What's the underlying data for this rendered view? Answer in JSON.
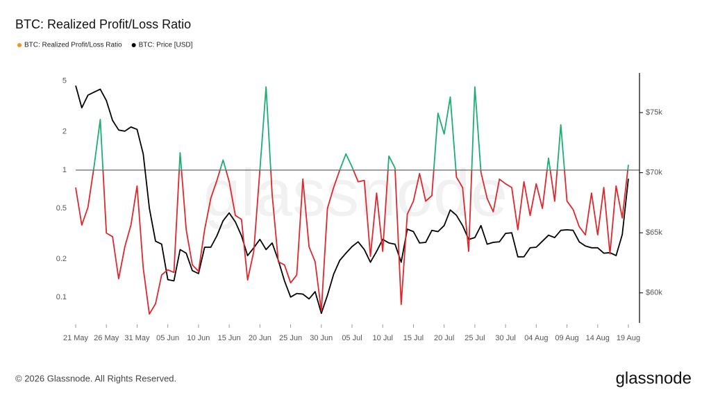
{
  "chart_data": {
    "type": "line",
    "title": "BTC: Realized Profit/Loss Ratio",
    "watermark": "glassnode",
    "footer": "© 2026 Glassnode. All Rights Reserved.",
    "logo": "glassnode",
    "categories": [
      "21 May",
      null,
      null,
      null,
      null,
      "26 May",
      null,
      null,
      null,
      null,
      "31 May",
      null,
      null,
      null,
      null,
      "05 Jun",
      null,
      null,
      null,
      null,
      "10 Jun",
      null,
      null,
      null,
      null,
      "15 Jun",
      null,
      null,
      null,
      null,
      "20 Jun",
      null,
      null,
      null,
      null,
      "25 Jun",
      null,
      null,
      null,
      null,
      "30 Jun",
      null,
      null,
      null,
      null,
      "05 Jul",
      null,
      null,
      null,
      null,
      "10 Jul",
      null,
      null,
      null,
      null,
      "15 Jul",
      null,
      null,
      null,
      null,
      "20 Jul",
      null,
      null,
      null,
      null,
      "25 Jul",
      null,
      null,
      null,
      null,
      "30 Jul",
      null,
      null,
      null,
      null,
      "04 Aug",
      null,
      null,
      null,
      null,
      "09 Aug",
      null,
      null,
      null,
      null,
      "14 Aug",
      null,
      null,
      null,
      null,
      "19 Aug"
    ],
    "ylog": true,
    "ylim": [
      0.063,
      5.8
    ],
    "yticks": [
      0.1,
      0.2,
      0.5,
      1,
      2,
      5
    ],
    "y2lim": [
      57500,
      78300
    ],
    "y2ticks": [
      {
        "value": 60000,
        "label": "$60k"
      },
      {
        "value": 65000,
        "label": "$65k"
      },
      {
        "value": 70000,
        "label": "$70k"
      },
      {
        "value": 75000,
        "label": "$75k"
      }
    ],
    "series": [
      {
        "name": "BTC: Realized Profit/Loss Ratio",
        "color": "#f7931a",
        "color_above": "#1aae74",
        "color_below": "#e0262b",
        "values": [
          0.73,
          0.37,
          0.51,
          1.07,
          2.5,
          0.32,
          0.3,
          0.14,
          0.25,
          0.37,
          0.75,
          0.17,
          0.074,
          0.089,
          0.15,
          0.165,
          0.157,
          1.37,
          0.34,
          0.18,
          0.16,
          0.34,
          0.6,
          0.83,
          1.2,
          0.81,
          0.44,
          0.41,
          0.137,
          0.23,
          1.0,
          4.5,
          0.64,
          0.19,
          0.18,
          0.13,
          0.15,
          0.85,
          0.25,
          0.19,
          0.078,
          0.5,
          0.73,
          1.0,
          1.34,
          1.06,
          0.81,
          0.83,
          0.21,
          0.66,
          0.23,
          1.29,
          1.04,
          0.088,
          0.45,
          0.57,
          0.94,
          0.57,
          0.63,
          2.8,
          1.92,
          3.75,
          0.88,
          0.73,
          0.23,
          4.5,
          0.96,
          0.6,
          0.47,
          0.85,
          0.78,
          0.73,
          0.34,
          0.81,
          0.44,
          0.78,
          0.5,
          1.24,
          0.57,
          2.27,
          0.57,
          0.49,
          0.36,
          0.31,
          0.66,
          0.31,
          0.73,
          0.22,
          0.75,
          0.42,
          1.1
        ]
      },
      {
        "name": "BTC: Price [USD]",
        "color": "#000000",
        "axis": "y2",
        "values": [
          77250,
          75400,
          76450,
          76700,
          76950,
          76000,
          74350,
          73550,
          73450,
          73800,
          73600,
          71550,
          67050,
          64300,
          64050,
          61100,
          61000,
          63600,
          63300,
          61850,
          61600,
          63800,
          63800,
          64750,
          66000,
          66650,
          65900,
          64750,
          63100,
          63750,
          64450,
          63600,
          64150,
          62700,
          61000,
          59650,
          59950,
          59900,
          59500,
          60100,
          58300,
          59800,
          61550,
          62700,
          63300,
          63850,
          64250,
          63600,
          62550,
          63450,
          64450,
          64150,
          64050,
          62550,
          65300,
          65100,
          64150,
          64200,
          65200,
          65100,
          65600,
          66900,
          66450,
          65600,
          64450,
          64600,
          65600,
          64050,
          64200,
          64250,
          64950,
          65000,
          63000,
          63000,
          63750,
          63800,
          64300,
          64800,
          64600,
          65200,
          65250,
          65200,
          64250,
          63900,
          63750,
          63750,
          63300,
          63350,
          63100,
          64850,
          69500
        ]
      }
    ]
  }
}
